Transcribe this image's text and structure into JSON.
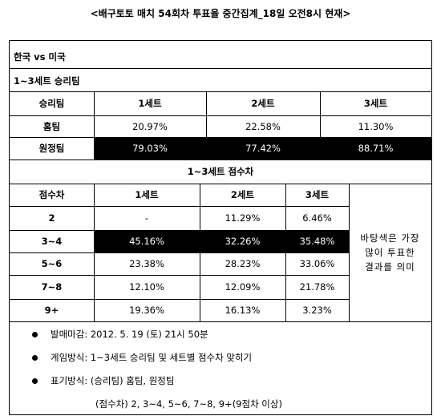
{
  "title": "<배구토토 매치 54회차 투표율 중간집계_18일 오전8시 현재>",
  "match": "한국 vs 미국",
  "section1": {
    "heading": "1~3세트 승리팀",
    "columns": [
      "승리팀",
      "1세트",
      "2세트",
      "3세트"
    ],
    "rows": [
      {
        "label": "홈팀",
        "values": [
          "20.97%",
          "22.58%",
          "11.30%"
        ]
      },
      {
        "label": "원정팀",
        "values": [
          "79.03%",
          "77.42%",
          "88.71%"
        ]
      }
    ]
  },
  "section2": {
    "heading": "1~3세트 점수차",
    "columns": [
      "점수차",
      "1세트",
      "2세트",
      "3세트"
    ],
    "rows": [
      {
        "label": "2",
        "values": [
          "-",
          "11.29%",
          "6.46%"
        ]
      },
      {
        "label": "3~4",
        "values": [
          "45.16%",
          "32.26%",
          "35.48%"
        ]
      },
      {
        "label": "5~6",
        "values": [
          "23.38%",
          "28.23%",
          "33.06%"
        ]
      },
      {
        "label": "7~8",
        "values": [
          "12.10%",
          "12.09%",
          "21.78%"
        ]
      },
      {
        "label": "9+",
        "values": [
          "19.36%",
          "16.13%",
          "3.23%"
        ]
      }
    ],
    "note": [
      "바탕색은 가장",
      "많이 투표한",
      "결과를 의미"
    ]
  },
  "info": {
    "deadline": "발매마감: 2012. 5. 19 (토) 21시 50분",
    "method": "게임방식: 1~3세트 승리팀 및 세트별 점수차 맞히기",
    "notation": "표기방식: (승리팀) 홈팀, 원정팀",
    "notation2": "(점수차) 2, 3~4, 5~6, 7~8, 9+(9점차 이상)"
  },
  "colors": {
    "highlight": "#000000",
    "highlight_text": "#ffffff"
  }
}
